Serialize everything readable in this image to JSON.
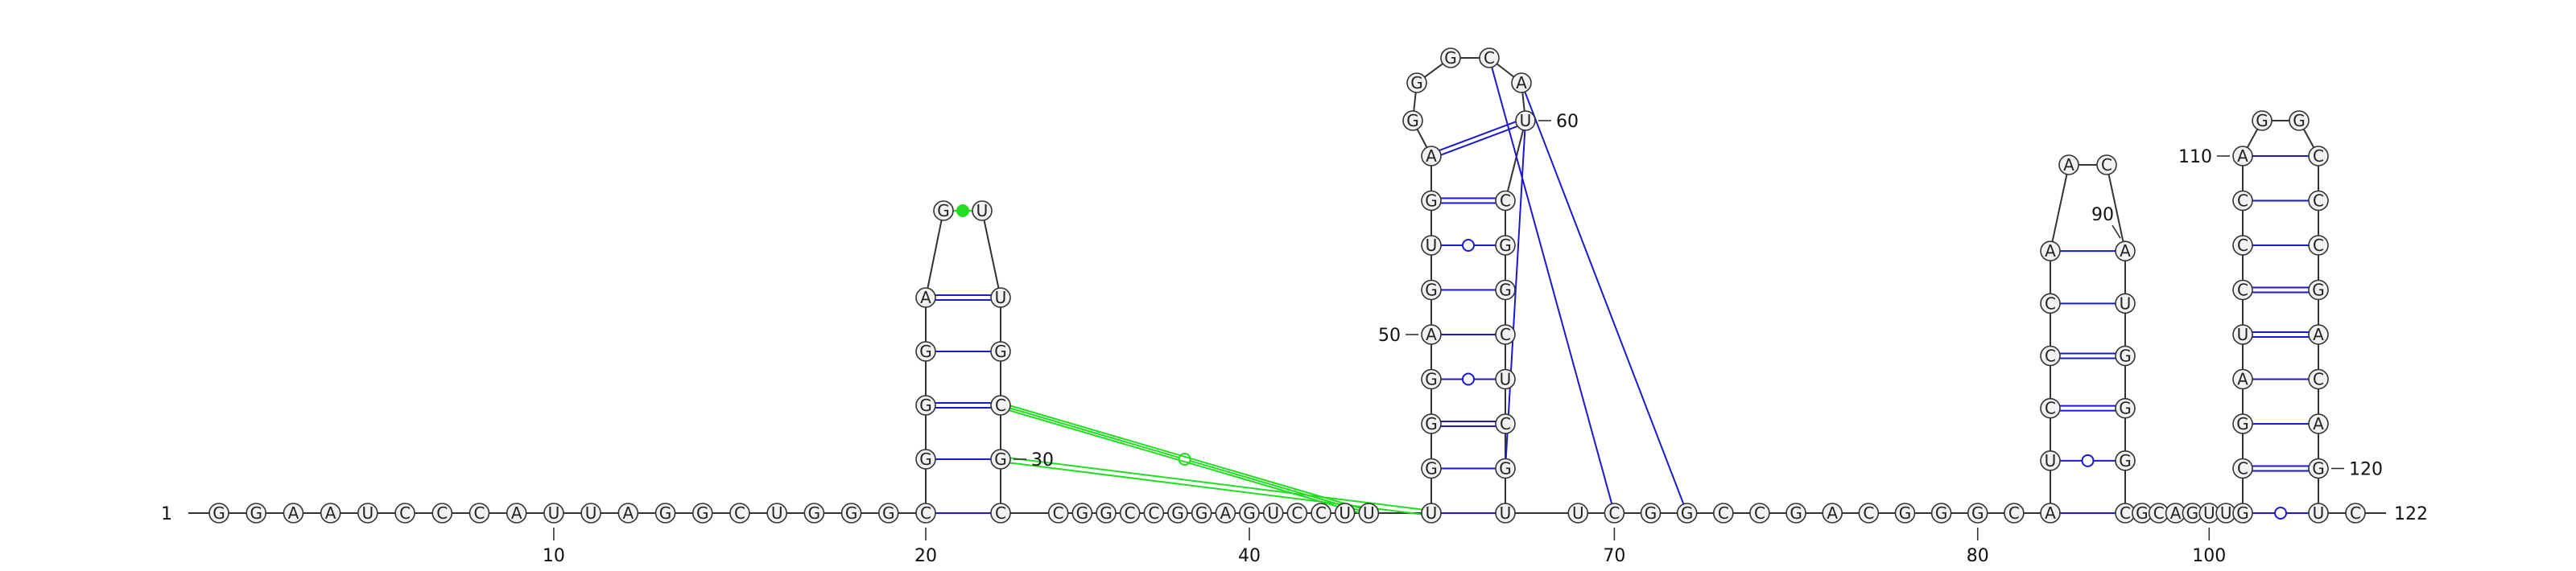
{
  "sequence": "GGAAUCCCAUUAGGCUGGGCGGGAGUUGCGCCGGCCGGAGUCCUUUGGGAGUGAGGGCAUCGGCUCGUUCGGCCGACGGGCAUCCCAACAUGGGCGCAGUUGCGAUCCCAGGCCCGACAGUC",
  "length_label": "122",
  "index_labels": [
    {
      "pos": 1,
      "text": "1"
    },
    {
      "pos": 10,
      "text": "10"
    },
    {
      "pos": 20,
      "text": "20"
    },
    {
      "pos": 30,
      "text": "30"
    },
    {
      "pos": 40,
      "text": "40"
    },
    {
      "pos": 50,
      "text": "50"
    },
    {
      "pos": 60,
      "text": "60"
    },
    {
      "pos": 70,
      "text": "70"
    },
    {
      "pos": 80,
      "text": "80"
    },
    {
      "pos": 90,
      "text": "90"
    },
    {
      "pos": 100,
      "text": "100"
    },
    {
      "pos": 110,
      "text": "110"
    },
    {
      "pos": 120,
      "text": "120"
    },
    {
      "pos": 122,
      "text": "122"
    }
  ],
  "helices": [
    {
      "name": "helix-1",
      "pairs": [
        [
          20,
          31
        ],
        [
          21,
          30
        ],
        [
          22,
          29
        ],
        [
          23,
          28
        ],
        [
          24,
          27
        ]
      ],
      "loop": [
        25,
        26
      ]
    },
    {
      "name": "helix-2",
      "pairs": [
        [
          46,
          68
        ],
        [
          47,
          67
        ],
        [
          48,
          66
        ],
        [
          49,
          65
        ],
        [
          50,
          64
        ],
        [
          51,
          63
        ],
        [
          52,
          62
        ],
        [
          53,
          61
        ],
        [
          54,
          60
        ]
      ],
      "loop": [
        55,
        56,
        57,
        58,
        59
      ]
    },
    {
      "name": "helix-3",
      "pairs": [
        [
          82,
          95
        ],
        [
          83,
          94
        ],
        [
          84,
          93
        ],
        [
          85,
          92
        ],
        [
          86,
          91
        ],
        [
          87,
          90
        ]
      ],
      "loop": [
        88,
        89
      ]
    },
    {
      "name": "helix-4",
      "pairs": [
        [
          102,
          121
        ],
        [
          103,
          120
        ],
        [
          104,
          119
        ],
        [
          105,
          118
        ],
        [
          106,
          117
        ],
        [
          107,
          116
        ],
        [
          108,
          115
        ],
        [
          109,
          114
        ],
        [
          110,
          113
        ]
      ],
      "loop": [
        111,
        112
      ]
    }
  ],
  "pair_types": {
    "wc": "double",
    "gu": "circle",
    "other": "single"
  },
  "loop_interaction": {
    "pair": [
      25,
      26
    ],
    "color": "#22dd22"
  },
  "tertiary_interactions": [
    {
      "from": 29,
      "to": 45,
      "style": "circle"
    },
    {
      "from": 30,
      "to": 46,
      "style": "double"
    },
    {
      "from": 29,
      "to": 45,
      "style": "double"
    },
    {
      "from": 58,
      "to": 70,
      "style": "single"
    },
    {
      "from": 59,
      "to": 72,
      "style": "single"
    },
    {
      "from": 60,
      "to": 67,
      "style": "single"
    }
  ],
  "colors": {
    "pair_line": "#1a1acc",
    "tertiary_green": "#22dd22",
    "tertiary_blue": "#1a1acc",
    "backbone": "#333333",
    "nucleotide_fill": "#f2f2f2",
    "nucleotide_stroke": "#333333"
  }
}
